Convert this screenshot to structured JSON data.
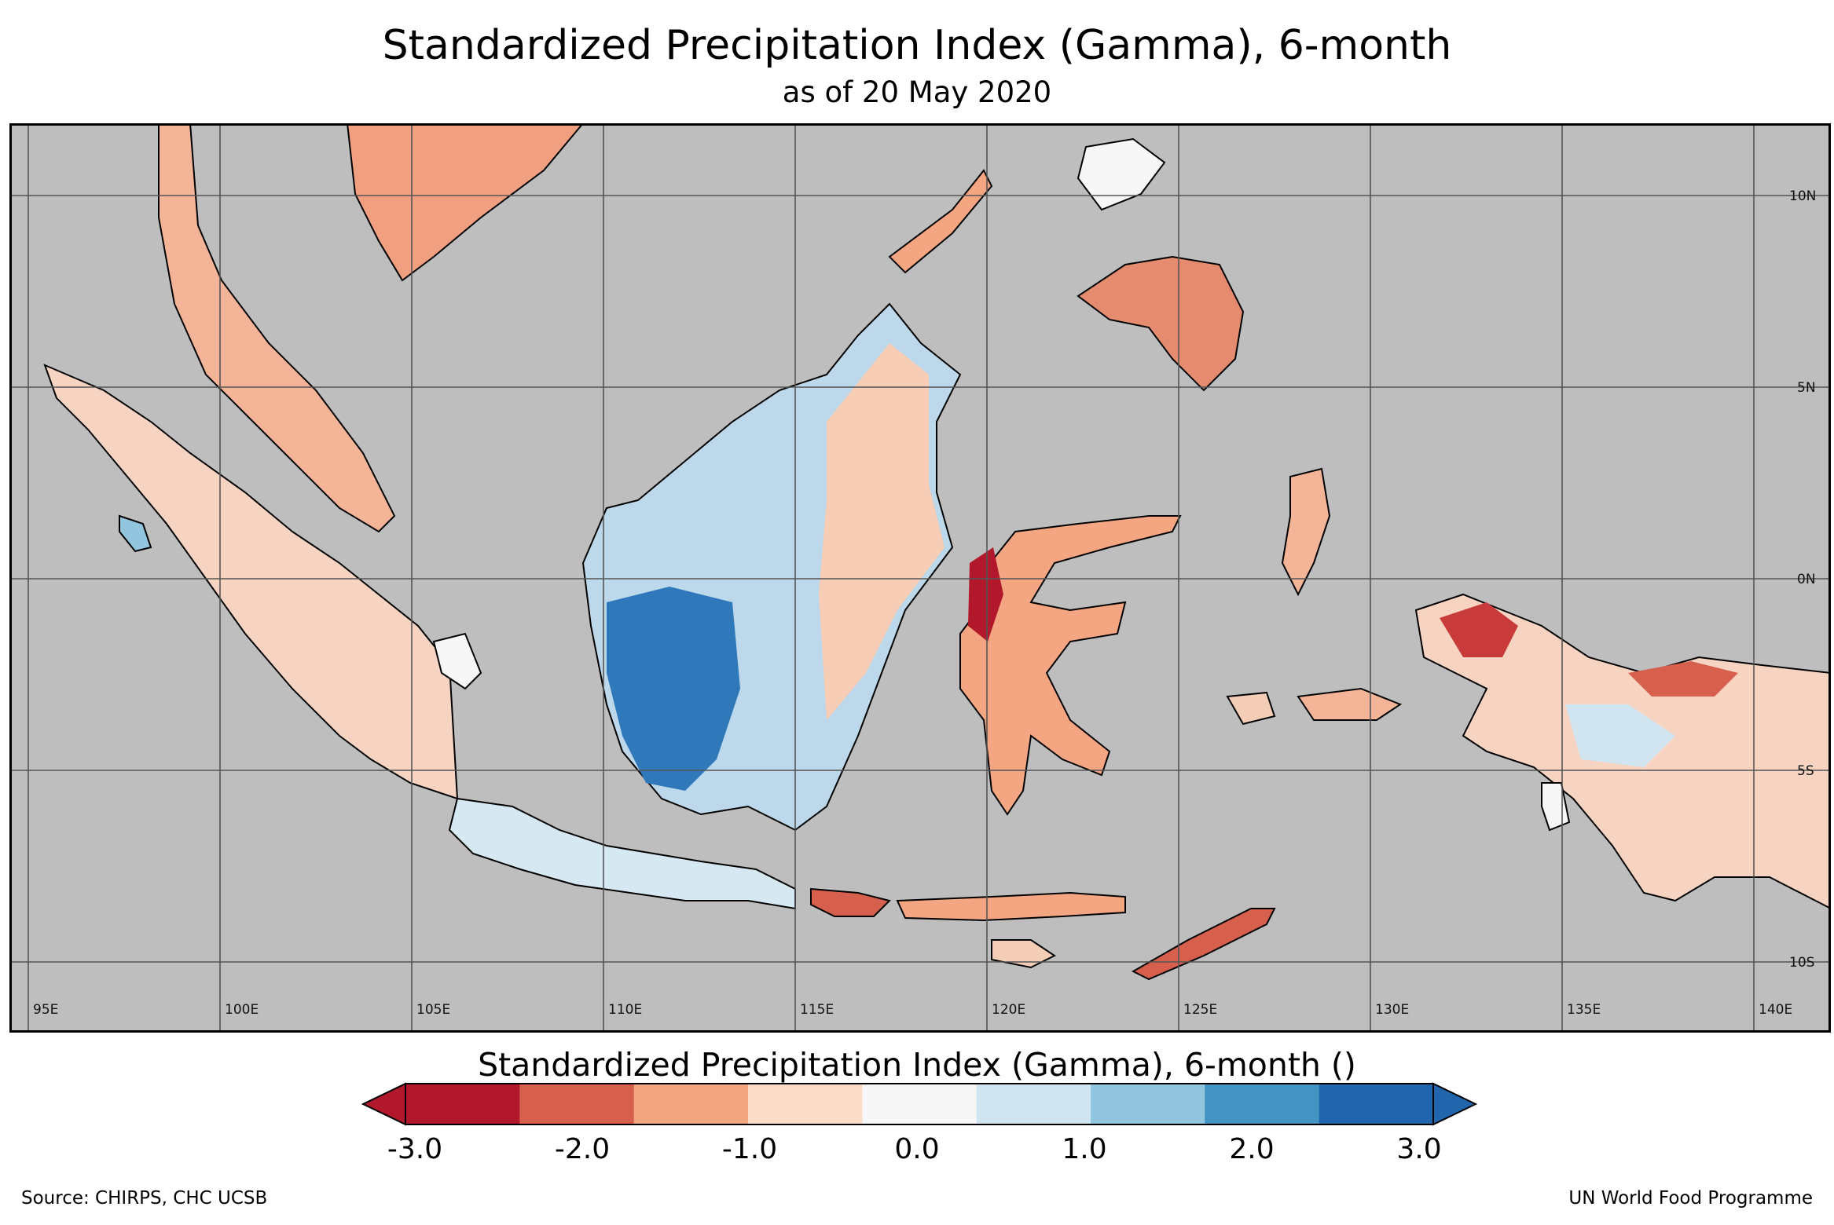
{
  "title": "Standardized Precipitation Index (Gamma), 6-month",
  "subtitle": "as of 20 May 2020",
  "map": {
    "ocean_color": "#bebebe",
    "lon_labels": [
      "95E",
      "100E",
      "105E",
      "110E",
      "115E",
      "120E",
      "125E",
      "130E",
      "135E",
      "140E"
    ],
    "lat_labels": [
      "10N",
      "5N",
      "0N",
      "5S",
      "10S"
    ]
  },
  "colorbar": {
    "title": "Standardized Precipitation Index (Gamma), 6-month ()",
    "tick_labels": [
      "-3.0",
      "-2.0",
      "-1.0",
      "0.0",
      "1.0",
      "2.0",
      "3.0"
    ],
    "colors": [
      "#b2182b",
      "#d6604d",
      "#f4a582",
      "#fcdbc7",
      "#f7f7f7",
      "#d1e5f0",
      "#92c5de",
      "#4393c3",
      "#2166ac"
    ],
    "under_color": "#b2182b",
    "over_color": "#2166ac"
  },
  "footer": {
    "source": "Source: CHIRPS, CHC UCSB",
    "credit": "UN World Food Programme"
  }
}
